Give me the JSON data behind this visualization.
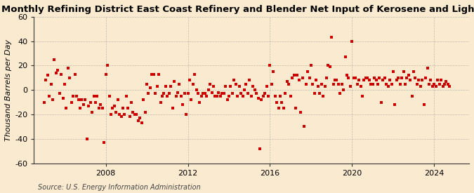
{
  "title": "Monthly Refining District East Coast Refinery and Blender Net Input of Kerosene and Light Oils",
  "ylabel": "Thousand Barrels per Day",
  "source": "Source: U.S. Energy Information Administration",
  "ylim": [
    -60,
    60
  ],
  "yticks": [
    -60,
    -40,
    -20,
    0,
    20,
    40,
    60
  ],
  "xticks": [
    2008,
    2012,
    2016,
    2020,
    2024
  ],
  "x_start_year": 2004.5,
  "x_end_year": 2025.7,
  "marker_color": "#cc0000",
  "marker_size": 5,
  "background_color": "#faebd0",
  "grid_color": "#999999",
  "title_fontsize": 9.5,
  "axis_fontsize": 8,
  "source_fontsize": 7,
  "data_points": [
    [
      2005.0,
      -10
    ],
    [
      2005.08,
      8
    ],
    [
      2005.17,
      12
    ],
    [
      2005.25,
      -5
    ],
    [
      2005.33,
      5
    ],
    [
      2005.42,
      -8
    ],
    [
      2005.5,
      25
    ],
    [
      2005.58,
      14
    ],
    [
      2005.67,
      16
    ],
    [
      2005.75,
      -3
    ],
    [
      2005.83,
      13
    ],
    [
      2005.92,
      -7
    ],
    [
      2006.0,
      5
    ],
    [
      2006.08,
      -15
    ],
    [
      2006.17,
      18
    ],
    [
      2006.25,
      10
    ],
    [
      2006.33,
      -10
    ],
    [
      2006.42,
      -5
    ],
    [
      2006.5,
      13
    ],
    [
      2006.58,
      -5
    ],
    [
      2006.67,
      -8
    ],
    [
      2006.75,
      -15
    ],
    [
      2006.83,
      -8
    ],
    [
      2006.92,
      -12
    ],
    [
      2007.0,
      -8
    ],
    [
      2007.08,
      -40
    ],
    [
      2007.17,
      -13
    ],
    [
      2007.25,
      -10
    ],
    [
      2007.33,
      -18
    ],
    [
      2007.42,
      -5
    ],
    [
      2007.5,
      -10
    ],
    [
      2007.58,
      -5
    ],
    [
      2007.67,
      -15
    ],
    [
      2007.75,
      -12
    ],
    [
      2007.83,
      -15
    ],
    [
      2007.92,
      -43
    ],
    [
      2008.0,
      13
    ],
    [
      2008.08,
      20
    ],
    [
      2008.17,
      -5
    ],
    [
      2008.25,
      -20
    ],
    [
      2008.33,
      -15
    ],
    [
      2008.42,
      -13
    ],
    [
      2008.5,
      -18
    ],
    [
      2008.58,
      -8
    ],
    [
      2008.67,
      -20
    ],
    [
      2008.75,
      -22
    ],
    [
      2008.83,
      -15
    ],
    [
      2008.92,
      -20
    ],
    [
      2009.0,
      -5
    ],
    [
      2009.08,
      -15
    ],
    [
      2009.17,
      -22
    ],
    [
      2009.25,
      -10
    ],
    [
      2009.33,
      -18
    ],
    [
      2009.42,
      -20
    ],
    [
      2009.5,
      -20
    ],
    [
      2009.58,
      -25
    ],
    [
      2009.67,
      -23
    ],
    [
      2009.75,
      -27
    ],
    [
      2009.83,
      -8
    ],
    [
      2009.92,
      -18
    ],
    [
      2010.0,
      5
    ],
    [
      2010.08,
      -3
    ],
    [
      2010.17,
      2
    ],
    [
      2010.25,
      13
    ],
    [
      2010.33,
      13
    ],
    [
      2010.42,
      -3
    ],
    [
      2010.5,
      3
    ],
    [
      2010.58,
      13
    ],
    [
      2010.67,
      -10
    ],
    [
      2010.75,
      -5
    ],
    [
      2010.83,
      -3
    ],
    [
      2010.92,
      3
    ],
    [
      2011.0,
      -5
    ],
    [
      2011.08,
      -3
    ],
    [
      2011.17,
      3
    ],
    [
      2011.25,
      -15
    ],
    [
      2011.33,
      7
    ],
    [
      2011.42,
      -5
    ],
    [
      2011.5,
      -2
    ],
    [
      2011.58,
      5
    ],
    [
      2011.67,
      -5
    ],
    [
      2011.75,
      -12
    ],
    [
      2011.83,
      -3
    ],
    [
      2011.92,
      -20
    ],
    [
      2012.0,
      -3
    ],
    [
      2012.08,
      8
    ],
    [
      2012.17,
      -8
    ],
    [
      2012.25,
      5
    ],
    [
      2012.33,
      13
    ],
    [
      2012.42,
      0
    ],
    [
      2012.5,
      -3
    ],
    [
      2012.58,
      -10
    ],
    [
      2012.67,
      -5
    ],
    [
      2012.75,
      -3
    ],
    [
      2012.83,
      -3
    ],
    [
      2012.92,
      -5
    ],
    [
      2013.0,
      0
    ],
    [
      2013.08,
      5
    ],
    [
      2013.17,
      -2
    ],
    [
      2013.25,
      3
    ],
    [
      2013.33,
      -5
    ],
    [
      2013.42,
      -5
    ],
    [
      2013.5,
      -2
    ],
    [
      2013.58,
      -5
    ],
    [
      2013.67,
      -3
    ],
    [
      2013.75,
      -3
    ],
    [
      2013.83,
      3
    ],
    [
      2013.92,
      -8
    ],
    [
      2014.0,
      -5
    ],
    [
      2014.08,
      3
    ],
    [
      2014.17,
      -3
    ],
    [
      2014.25,
      8
    ],
    [
      2014.33,
      5
    ],
    [
      2014.42,
      -5
    ],
    [
      2014.5,
      3
    ],
    [
      2014.58,
      -3
    ],
    [
      2014.67,
      -5
    ],
    [
      2014.75,
      0
    ],
    [
      2014.83,
      5
    ],
    [
      2014.92,
      -3
    ],
    [
      2015.0,
      8
    ],
    [
      2015.08,
      -5
    ],
    [
      2015.17,
      3
    ],
    [
      2015.25,
      0
    ],
    [
      2015.33,
      -3
    ],
    [
      2015.42,
      -7
    ],
    [
      2015.5,
      -48
    ],
    [
      2015.58,
      -8
    ],
    [
      2015.67,
      -5
    ],
    [
      2015.75,
      -3
    ],
    [
      2015.83,
      3
    ],
    [
      2015.92,
      -5
    ],
    [
      2016.0,
      20
    ],
    [
      2016.08,
      5
    ],
    [
      2016.17,
      15
    ],
    [
      2016.25,
      -5
    ],
    [
      2016.33,
      -10
    ],
    [
      2016.42,
      -15
    ],
    [
      2016.5,
      -5
    ],
    [
      2016.58,
      -10
    ],
    [
      2016.67,
      -15
    ],
    [
      2016.75,
      -3
    ],
    [
      2016.83,
      7
    ],
    [
      2016.92,
      5
    ],
    [
      2017.0,
      -5
    ],
    [
      2017.08,
      10
    ],
    [
      2017.17,
      12
    ],
    [
      2017.25,
      -15
    ],
    [
      2017.33,
      12
    ],
    [
      2017.42,
      8
    ],
    [
      2017.5,
      -18
    ],
    [
      2017.58,
      10
    ],
    [
      2017.67,
      -30
    ],
    [
      2017.75,
      5
    ],
    [
      2017.83,
      15
    ],
    [
      2017.92,
      10
    ],
    [
      2018.0,
      20
    ],
    [
      2018.08,
      5
    ],
    [
      2018.17,
      -3
    ],
    [
      2018.25,
      8
    ],
    [
      2018.33,
      3
    ],
    [
      2018.42,
      -3
    ],
    [
      2018.5,
      5
    ],
    [
      2018.58,
      -5
    ],
    [
      2018.67,
      3
    ],
    [
      2018.75,
      10
    ],
    [
      2018.83,
      20
    ],
    [
      2018.92,
      19
    ],
    [
      2019.0,
      43
    ],
    [
      2019.08,
      5
    ],
    [
      2019.17,
      8
    ],
    [
      2019.25,
      8
    ],
    [
      2019.33,
      5
    ],
    [
      2019.42,
      -3
    ],
    [
      2019.5,
      5
    ],
    [
      2019.58,
      0
    ],
    [
      2019.67,
      27
    ],
    [
      2019.75,
      12
    ],
    [
      2019.83,
      10
    ],
    [
      2019.92,
      3
    ],
    [
      2020.0,
      40
    ],
    [
      2020.08,
      10
    ],
    [
      2020.17,
      10
    ],
    [
      2020.25,
      5
    ],
    [
      2020.33,
      8
    ],
    [
      2020.42,
      3
    ],
    [
      2020.5,
      -5
    ],
    [
      2020.58,
      8
    ],
    [
      2020.67,
      10
    ],
    [
      2020.75,
      10
    ],
    [
      2020.83,
      8
    ],
    [
      2020.92,
      5
    ],
    [
      2021.0,
      5
    ],
    [
      2021.08,
      10
    ],
    [
      2021.17,
      8
    ],
    [
      2021.25,
      5
    ],
    [
      2021.33,
      10
    ],
    [
      2021.42,
      -10
    ],
    [
      2021.5,
      8
    ],
    [
      2021.58,
      10
    ],
    [
      2021.67,
      5
    ],
    [
      2021.75,
      3
    ],
    [
      2021.83,
      8
    ],
    [
      2021.92,
      5
    ],
    [
      2022.0,
      15
    ],
    [
      2022.08,
      -12
    ],
    [
      2022.17,
      8
    ],
    [
      2022.25,
      10
    ],
    [
      2022.33,
      5
    ],
    [
      2022.42,
      10
    ],
    [
      2022.5,
      15
    ],
    [
      2022.58,
      5
    ],
    [
      2022.67,
      10
    ],
    [
      2022.75,
      12
    ],
    [
      2022.83,
      8
    ],
    [
      2022.92,
      -5
    ],
    [
      2023.0,
      15
    ],
    [
      2023.08,
      10
    ],
    [
      2023.17,
      5
    ],
    [
      2023.25,
      8
    ],
    [
      2023.33,
      3
    ],
    [
      2023.42,
      8
    ],
    [
      2023.5,
      -12
    ],
    [
      2023.58,
      10
    ],
    [
      2023.67,
      18
    ],
    [
      2023.75,
      5
    ],
    [
      2023.83,
      8
    ],
    [
      2023.92,
      3
    ],
    [
      2024.0,
      5
    ],
    [
      2024.08,
      3
    ],
    [
      2024.17,
      8
    ],
    [
      2024.25,
      5
    ],
    [
      2024.33,
      8
    ],
    [
      2024.42,
      3
    ],
    [
      2024.5,
      5
    ],
    [
      2024.58,
      7
    ],
    [
      2024.67,
      5
    ],
    [
      2024.75,
      3
    ]
  ]
}
